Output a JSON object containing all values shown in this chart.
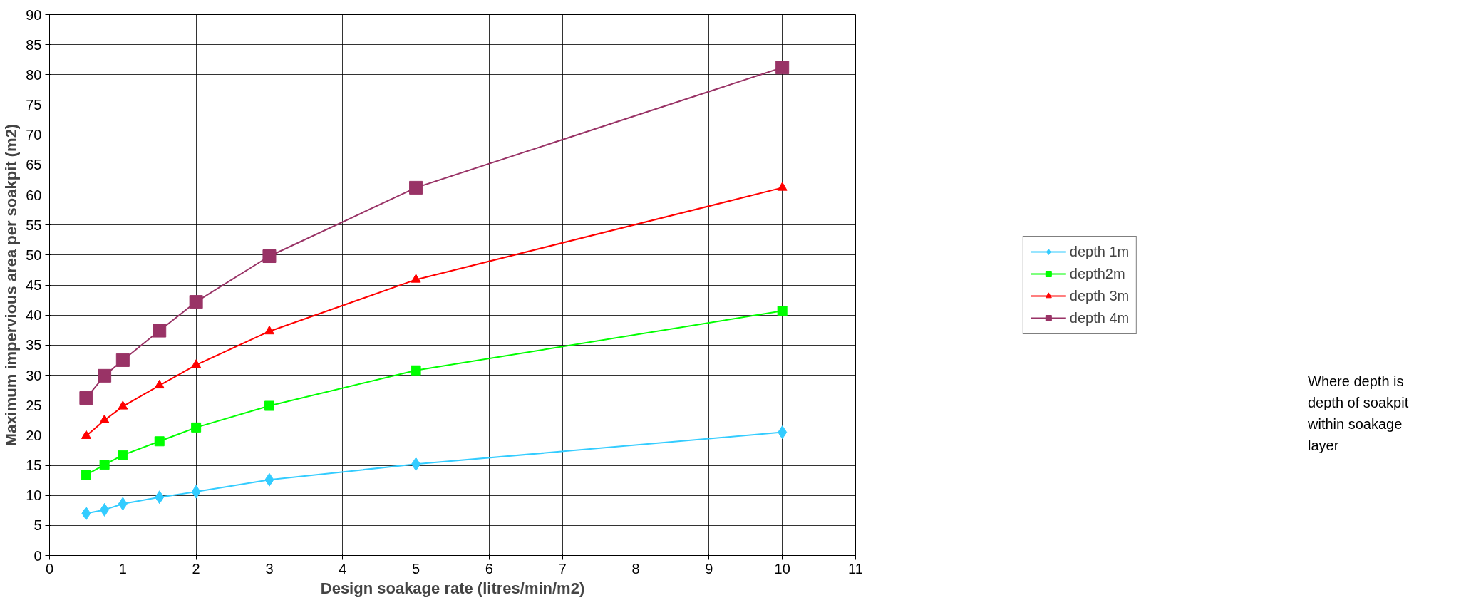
{
  "chart_data": {
    "type": "line",
    "xlabel": "Design soakage rate (litres/min/m2)",
    "ylabel": "Maximum impervious area per soakpit (m2)",
    "x": [
      0.5,
      0.75,
      1,
      1.5,
      2,
      3,
      5,
      10
    ],
    "series": [
      {
        "name": "depth 1m",
        "color": "#33ccff",
        "marker": "diamond",
        "values": [
          7.0,
          7.6,
          8.6,
          9.7,
          10.6,
          12.6,
          15.2,
          20.5
        ]
      },
      {
        "name": "depth2m",
        "color": "#00ff00",
        "marker": "square",
        "values": [
          13.4,
          15.1,
          16.7,
          19.0,
          21.3,
          24.9,
          30.8,
          40.7
        ]
      },
      {
        "name": "depth 3m",
        "color": "#ff0000",
        "marker": "triangle",
        "values": [
          19.9,
          22.5,
          24.8,
          28.3,
          31.7,
          37.3,
          45.9,
          61.2
        ]
      },
      {
        "name": "depth 4m",
        "color": "#993366",
        "marker": "square",
        "values": [
          26.2,
          29.9,
          32.5,
          37.4,
          42.2,
          49.8,
          61.2,
          81.2
        ]
      }
    ],
    "xlim": [
      0,
      11
    ],
    "xticks": [
      0,
      1,
      2,
      3,
      4,
      5,
      6,
      7,
      8,
      9,
      10,
      11
    ],
    "ylim": [
      0,
      90
    ],
    "yticks": [
      0,
      5,
      10,
      15,
      20,
      25,
      30,
      35,
      40,
      45,
      50,
      55,
      60,
      65,
      70,
      75,
      80,
      85,
      90
    ],
    "grid": true,
    "legend": "right",
    "line_style": "solid",
    "annotations": [
      "Where depth is depth of soakpit within soakage layer"
    ]
  }
}
